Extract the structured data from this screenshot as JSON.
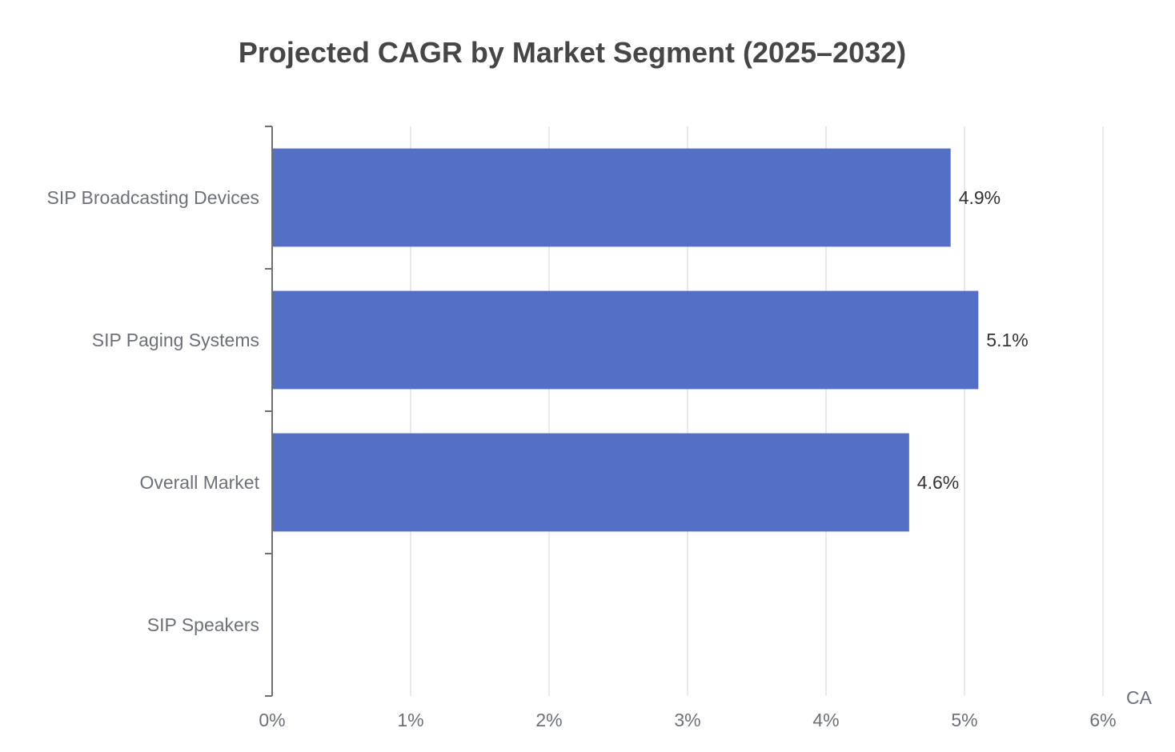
{
  "chart_data": {
    "type": "bar",
    "orientation": "horizontal",
    "title": "Projected CAGR by Market Segment (2025–2032)",
    "xlabel": "CA",
    "ylabel": "",
    "categories": [
      "SIP Broadcasting Devices",
      "SIP Paging Systems",
      "Overall Market",
      "SIP Speakers"
    ],
    "values": [
      4.9,
      5.1,
      4.6,
      null
    ],
    "data_labels": [
      "4.9%",
      "5.1%",
      "4.6%",
      ""
    ],
    "xlim": [
      0,
      6
    ],
    "x_ticks": [
      "0%",
      "1%",
      "2%",
      "3%",
      "4%",
      "5%",
      "6%"
    ],
    "grid": true,
    "legend": "none",
    "colors": {
      "bar": "#5470c6",
      "grid": "#dde3ea",
      "axis": "#6e7079",
      "title": "#464646"
    }
  }
}
